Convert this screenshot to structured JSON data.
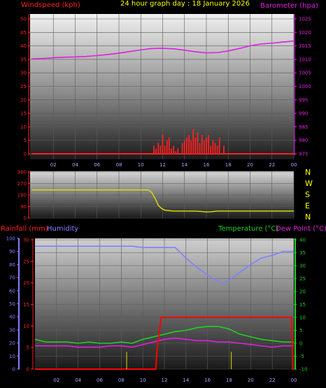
{
  "header": {
    "windspeed_label": "Windspeed (kph)",
    "title": "24 hour graph day : 18 January 2026",
    "barometer_label": "Barometer (hpa)"
  },
  "labels": {
    "rainfall": "Rainfall (mm)",
    "humidity": "Humidity",
    "temperature": "Temperature (°C)",
    "dewpoint": "Dew Point (°C)"
  },
  "compass": [
    "N",
    "W",
    "S",
    "E",
    "N"
  ],
  "colors": {
    "wind": "#ff2020",
    "barometer": "#e020e0",
    "direction": "#e0e000",
    "rain": "#ff0000",
    "humidity": "#8080ff",
    "temperature": "#20d020",
    "dewpoint": "#e020e0",
    "title": "#ffff00",
    "axis_text": "#8080ff"
  },
  "chart_data": [
    {
      "type": "line",
      "x_ticks": [
        "02",
        "04",
        "06",
        "08",
        "10",
        "12",
        "14",
        "16",
        "18",
        "20",
        "22",
        "00"
      ],
      "xlim": [
        0,
        24
      ],
      "left_axis": {
        "label": "Windspeed (kph)",
        "ticks": [
          "0",
          "5",
          "10",
          "15",
          "20",
          "25",
          "30",
          "35",
          "40",
          "45",
          "50"
        ],
        "ylim": [
          0,
          50
        ]
      },
      "right_axis": {
        "label": "Barometer (hpa)",
        "ticks": [
          "975",
          "980",
          "985",
          "990",
          "995",
          "1000",
          "1005",
          "1010",
          "1015",
          "1020",
          "1025"
        ],
        "ylim": [
          975,
          1025
        ]
      },
      "series": [
        {
          "name": "Barometer (hpa)",
          "axis": "right",
          "x": [
            0,
            1,
            2,
            3,
            4,
            5,
            6,
            7,
            8,
            9,
            10,
            11,
            12,
            13,
            14,
            15,
            16,
            17,
            18,
            19,
            20,
            21,
            22,
            23,
            24
          ],
          "y": [
            1010.2,
            1010.3,
            1010.6,
            1010.8,
            1010.9,
            1011.1,
            1011.4,
            1011.8,
            1012.3,
            1012.9,
            1013.5,
            1014.0,
            1014.1,
            1013.9,
            1013.4,
            1012.8,
            1012.4,
            1012.5,
            1013.1,
            1014.0,
            1015.0,
            1015.7,
            1016.0,
            1016.4,
            1016.8
          ]
        },
        {
          "name": "Windspeed (kph)",
          "axis": "left",
          "x": [
            0,
            11.0,
            11.2,
            11.4,
            11.6,
            11.8,
            12.0,
            12.2,
            12.4,
            12.6,
            12.8,
            13.0,
            13.2,
            13.4,
            13.6,
            13.8,
            14.0,
            14.2,
            14.4,
            14.6,
            14.8,
            15.0,
            15.2,
            15.4,
            15.6,
            15.8,
            16.0,
            16.2,
            16.4,
            16.6,
            16.8,
            17.0,
            17.2,
            17.4,
            17.6,
            24
          ],
          "y": [
            0,
            0,
            3,
            2,
            4,
            3,
            7,
            3,
            5,
            6,
            2,
            3,
            1,
            2,
            0,
            4,
            5,
            6,
            7,
            5,
            9,
            6,
            8,
            4,
            7,
            5,
            6,
            7,
            3,
            5,
            4,
            3,
            6,
            0,
            3,
            0
          ]
        }
      ]
    },
    {
      "type": "line",
      "x_ticks": [
        "02",
        "04",
        "06",
        "08",
        "10",
        "12",
        "14",
        "16",
        "18",
        "20",
        "22",
        "00"
      ],
      "xlim": [
        0,
        24
      ],
      "y_ticks": [
        "0",
        "90",
        "180",
        "270",
        "360"
      ],
      "ylim": [
        0,
        360
      ],
      "series": [
        {
          "name": "Wind direction",
          "x": [
            0,
            10.7,
            11.0,
            11.2,
            11.4,
            11.6,
            11.9,
            12.2,
            12.6,
            13.0,
            14.0,
            15.0,
            15.5,
            16.0,
            16.5,
            17.0,
            18.0,
            20.0,
            22.0,
            24.0
          ],
          "y": [
            220,
            220,
            200,
            170,
            140,
            100,
            75,
            62,
            58,
            55,
            55,
            55,
            52,
            48,
            50,
            55,
            55,
            55,
            55,
            55
          ]
        }
      ]
    },
    {
      "type": "line",
      "x_ticks": [
        "02",
        "04",
        "06",
        "08",
        "10",
        "12",
        "14",
        "16",
        "18",
        "20",
        "22",
        "00"
      ],
      "xlim": [
        0,
        24
      ],
      "rain_axis": {
        "label": "Rainfall (mm)",
        "ticks": [
          "0",
          "5",
          "10",
          "15",
          "20",
          "25",
          "30"
        ],
        "ylim": [
          0,
          30
        ]
      },
      "humidity_axis": {
        "label": "Humidity",
        "ticks": [
          "0",
          "10",
          "20",
          "30",
          "40",
          "50",
          "60",
          "70",
          "80",
          "90",
          "100"
        ],
        "ylim": [
          0,
          100
        ]
      },
      "temp_axis": {
        "label": "Temperature (°C)",
        "ticks": [
          "-10",
          "-5",
          "0",
          "5",
          "10",
          "15",
          "20",
          "25",
          "30",
          "35",
          "40"
        ],
        "ylim": [
          -10,
          40
        ]
      },
      "series": [
        {
          "name": "Humidity",
          "axis": "humidity",
          "x": [
            0,
            1,
            2,
            3,
            4,
            5,
            6,
            7,
            8,
            9,
            10,
            11,
            12,
            13,
            14,
            15,
            16,
            17,
            17.5,
            18,
            19,
            20,
            21,
            22,
            23,
            24
          ],
          "y": [
            94,
            94,
            94,
            94,
            94,
            94,
            94,
            94,
            94,
            94,
            93,
            93,
            93,
            93,
            85,
            78,
            72,
            67,
            66,
            68,
            74,
            80,
            85,
            87,
            90,
            90
          ]
        },
        {
          "name": "Temperature (°C)",
          "axis": "temp",
          "x": [
            0,
            1,
            2,
            3,
            4,
            5,
            6,
            7,
            8,
            9,
            10,
            11,
            12,
            13,
            14,
            15,
            16,
            17,
            18,
            19,
            20,
            21,
            22,
            23,
            24
          ],
          "y": [
            1.5,
            0.5,
            0.5,
            0.5,
            0.0,
            0.5,
            0.0,
            0.0,
            0.5,
            0.0,
            1.5,
            2.5,
            3.5,
            4.5,
            5.0,
            6.0,
            6.5,
            6.5,
            5.5,
            3.5,
            2.5,
            1.5,
            1.0,
            0.5,
            0.5
          ]
        },
        {
          "name": "Dew Point (°C)",
          "axis": "temp",
          "x": [
            0,
            1,
            2,
            3,
            4,
            5,
            6,
            7,
            8,
            9,
            10,
            11,
            12,
            13,
            14,
            15,
            16,
            17,
            18,
            19,
            20,
            21,
            22,
            23,
            24
          ],
          "y": [
            -1.0,
            -1.0,
            -1.0,
            -1.0,
            -1.5,
            -1.5,
            -1.5,
            -1.0,
            -1.0,
            -1.5,
            -0.5,
            0.5,
            1.5,
            2.0,
            1.5,
            1.0,
            1.0,
            0.5,
            0.5,
            0.0,
            -0.5,
            -1.0,
            -1.5,
            -1.0,
            -1.0
          ]
        },
        {
          "name": "Rainfall (mm)",
          "axis": "rain",
          "x": [
            0,
            11.0,
            11.2,
            11.3,
            11.5,
            11.7,
            12.0,
            15.0,
            18.0,
            19.0,
            21.0,
            23.0,
            23.8,
            23.9,
            24
          ],
          "y": [
            0,
            0,
            0,
            4,
            8,
            12,
            12,
            12,
            12,
            12,
            12,
            12,
            12,
            0,
            0
          ]
        },
        {
          "name": "Rain rate",
          "axis": "rain",
          "style": "bars",
          "x": [
            8.5,
            18.2
          ],
          "y": [
            4,
            4
          ]
        }
      ]
    }
  ]
}
